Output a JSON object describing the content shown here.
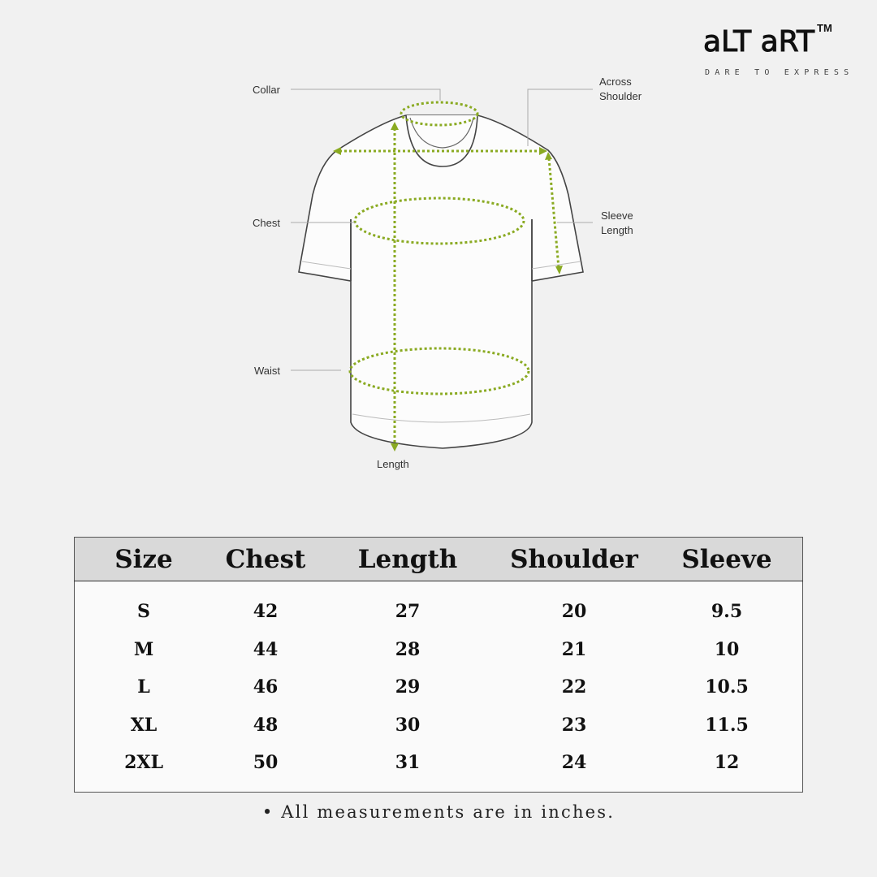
{
  "brand": {
    "logo_text": "aLT aRT",
    "trademark": "TM",
    "tagline": "DARE TO EXPRESS"
  },
  "diagram": {
    "labels": {
      "collar": "Collar",
      "across_shoulder_1": "Across",
      "across_shoulder_2": "Shoulder",
      "chest": "Chest",
      "sleeve_length_1": "Sleeve",
      "sleeve_length_2": "Length",
      "waist": "Waist",
      "length": "Length"
    },
    "measure_color": "#8aaa22"
  },
  "table": {
    "headers": [
      "Size",
      "Chest",
      "Length",
      "Shoulder",
      "Sleeve"
    ],
    "rows": [
      [
        "S",
        "42",
        "27",
        "20",
        "9.5"
      ],
      [
        "M",
        "44",
        "28",
        "21",
        "10"
      ],
      [
        "L",
        "46",
        "29",
        "22",
        "10.5"
      ],
      [
        "XL",
        "48",
        "30",
        "23",
        "11.5"
      ],
      [
        "2XL",
        "50",
        "31",
        "24",
        "12"
      ]
    ]
  },
  "note": "• All measurements are in inches."
}
